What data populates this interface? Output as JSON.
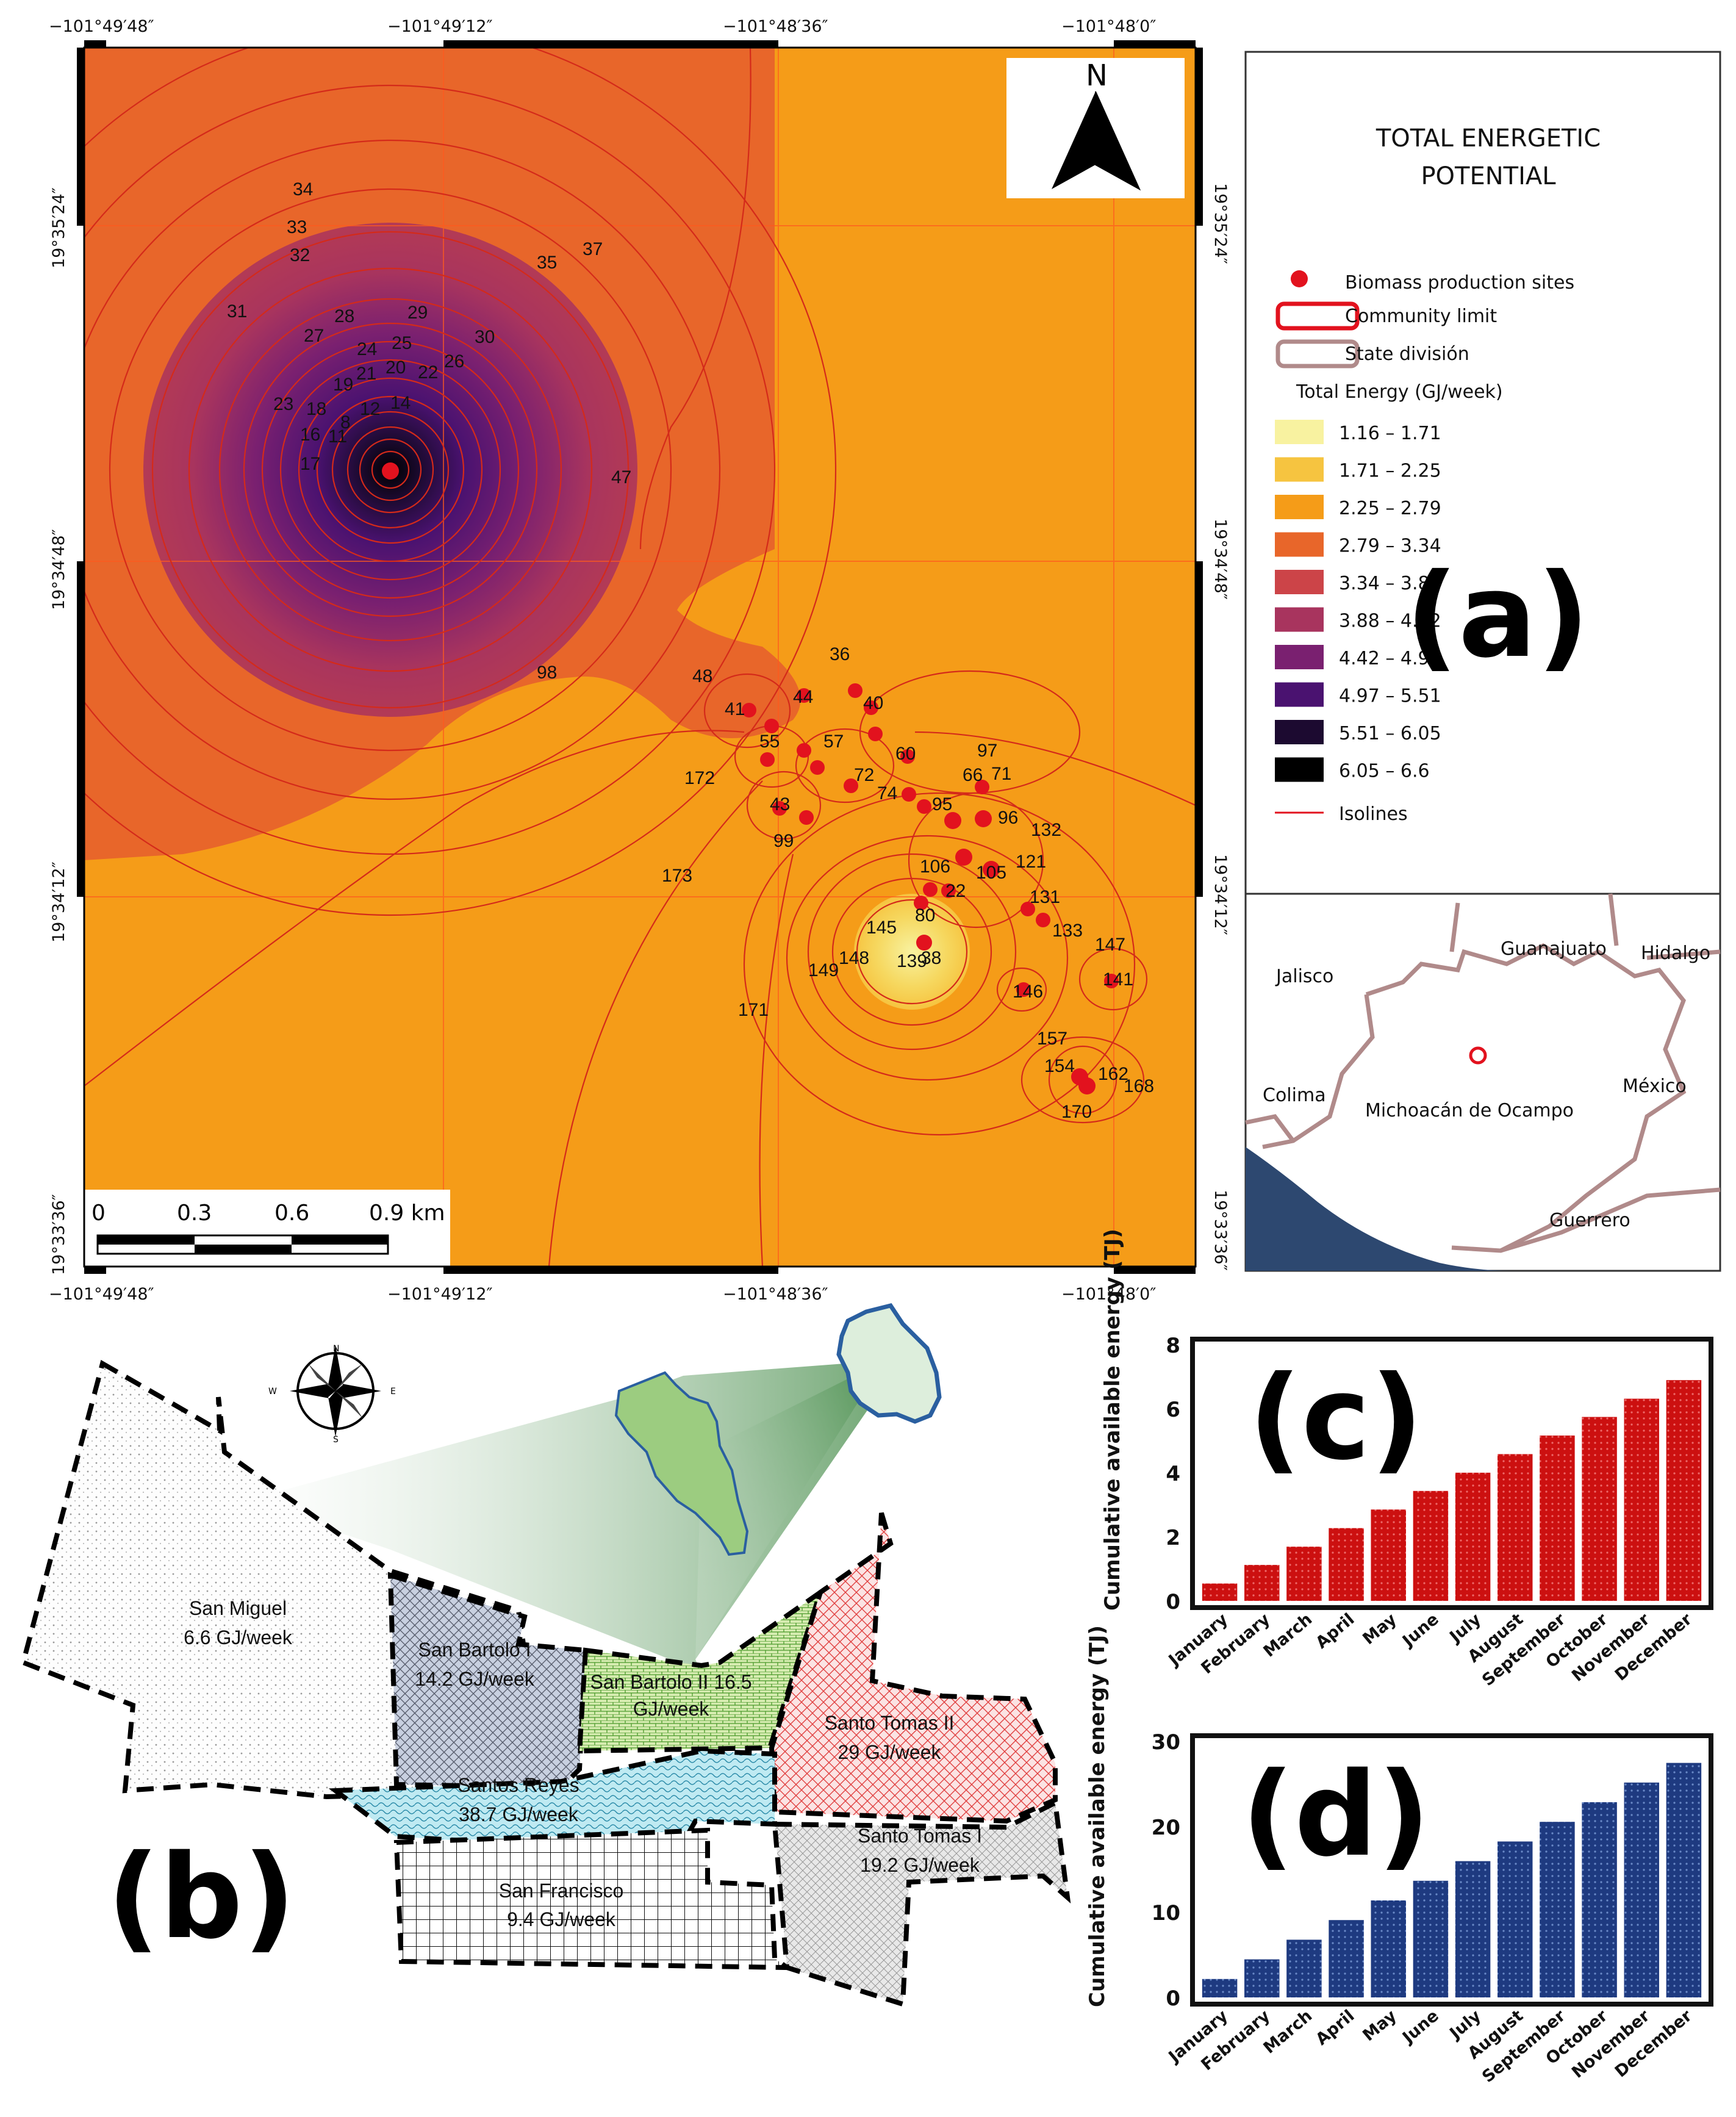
{
  "coordinates": {
    "top_ticks": [
      "−101°49′48″",
      "−101°49′12″",
      "−101°48′36″",
      "−101°48′0″"
    ],
    "bottom_ticks": [
      "−101°49′48″",
      "−101°49′12″",
      "−101°48′36″",
      "−101°48′0″"
    ],
    "left_ticks": [
      "19°35′24″",
      "19°34′48″",
      "19°34′12″",
      "19°33′36″"
    ],
    "right_ticks": [
      "19°35′24″",
      "19°34′48″",
      "19°34′12″",
      "19°33′36″"
    ]
  },
  "north_arrow": {
    "label": "N"
  },
  "scale_bar": {
    "labels": [
      "0",
      "0.3",
      "0.6",
      "0.9 km"
    ]
  },
  "isoline_labels": [
    "34",
    "33",
    "32",
    "35",
    "37",
    "31",
    "28",
    "29",
    "27",
    "24",
    "25",
    "30",
    "26",
    "19",
    "21",
    "20",
    "22",
    "18",
    "23",
    "16",
    "17",
    "11",
    "8",
    "12",
    "14",
    "47",
    "98",
    "48",
    "36",
    "44",
    "40",
    "41",
    "55",
    "57",
    "60",
    "97",
    "72",
    "66",
    "71",
    "74",
    "172",
    "95",
    "96",
    "43",
    "99",
    "132",
    "121",
    "173",
    "106",
    "105",
    "22",
    "131",
    "80",
    "133",
    "145",
    "147",
    "148",
    "149",
    "139",
    "38",
    "141",
    "146",
    "171",
    "157",
    "154",
    "162",
    "168",
    "170"
  ],
  "legend": {
    "title_line1": "TOTAL ENERGETIC",
    "title_line2": "POTENTIAL",
    "sites": "Biomass production sites",
    "community": "Community limit",
    "state": "State división",
    "energy_title": "Total Energy (GJ/week)",
    "classes": [
      {
        "label": "1.16 – 1.71",
        "color": "#f8f2a0"
      },
      {
        "label": "1.71 – 2.25",
        "color": "#f6c440"
      },
      {
        "label": "2.25 – 2.79",
        "color": "#f59c18"
      },
      {
        "label": "2.79 – 3.34",
        "color": "#e8662a"
      },
      {
        "label": "3.34 – 3.88",
        "color": "#cc4448"
      },
      {
        "label": "3.88 – 4.42",
        "color": "#a8345e"
      },
      {
        "label": "4.42 – 4.97",
        "color": "#7a2070"
      },
      {
        "label": "4.97 – 5.51",
        "color": "#4a1270"
      },
      {
        "label": "5.51 – 6.05",
        "color": "#1c0a30"
      },
      {
        "label": "6.05 – 6.6",
        "color": "#000000"
      }
    ],
    "isolines": "Isolines"
  },
  "inset_states": [
    "Guanajuato",
    "Hidalgo",
    "Jalisco",
    "Colima",
    "México",
    "Michoacán de Ocampo",
    "Guerrero"
  ],
  "panel_labels": [
    "(a)",
    "(b)",
    "(c)",
    "(d)"
  ],
  "compass": {
    "n": "N",
    "s": "S",
    "e": "E",
    "w": "W"
  },
  "regions": [
    {
      "name": "San Miguel",
      "value": "6.6 GJ/week"
    },
    {
      "name": "San Bartolo I",
      "value": "14.2 GJ/week"
    },
    {
      "name": "San Bartolo II 16.5",
      "value": "GJ/week"
    },
    {
      "name": "Santo Tomas II",
      "value": "29 GJ/week"
    },
    {
      "name": "Santos Reyes",
      "value": "38.7 GJ/week"
    },
    {
      "name": "Santo Tomas I",
      "value": "19.2 GJ/week"
    },
    {
      "name": "San Francisco",
      "value": "9.4 GJ/week"
    }
  ],
  "chart_data": [
    {
      "type": "bar",
      "panel": "(c)",
      "ylabel": "Cumulative available energy (TJ)",
      "categories": [
        "January",
        "February",
        "March",
        "April",
        "May",
        "June",
        "July",
        "August",
        "September",
        "October",
        "November",
        "December"
      ],
      "values": [
        0.58,
        1.16,
        1.73,
        2.31,
        2.89,
        3.47,
        4.04,
        4.62,
        5.2,
        5.78,
        6.35,
        6.93
      ],
      "yticks": [
        "0",
        "2",
        "4",
        "6",
        "8"
      ],
      "ylim": [
        0,
        8
      ],
      "color": "#c8141c"
    },
    {
      "type": "bar",
      "panel": "(d)",
      "ylabel": "Cumulative available energy (TJ)",
      "categories": [
        "January",
        "February",
        "March",
        "April",
        "May",
        "June",
        "July",
        "August",
        "September",
        "October",
        "November",
        "December"
      ],
      "values": [
        2.3,
        4.6,
        6.9,
        9.2,
        11.5,
        13.8,
        16.1,
        18.4,
        20.7,
        23.0,
        25.3,
        27.6
      ],
      "yticks": [
        "0",
        "10",
        "20",
        "30"
      ],
      "ylim": [
        0,
        30
      ],
      "color": "#1e3a80"
    }
  ]
}
